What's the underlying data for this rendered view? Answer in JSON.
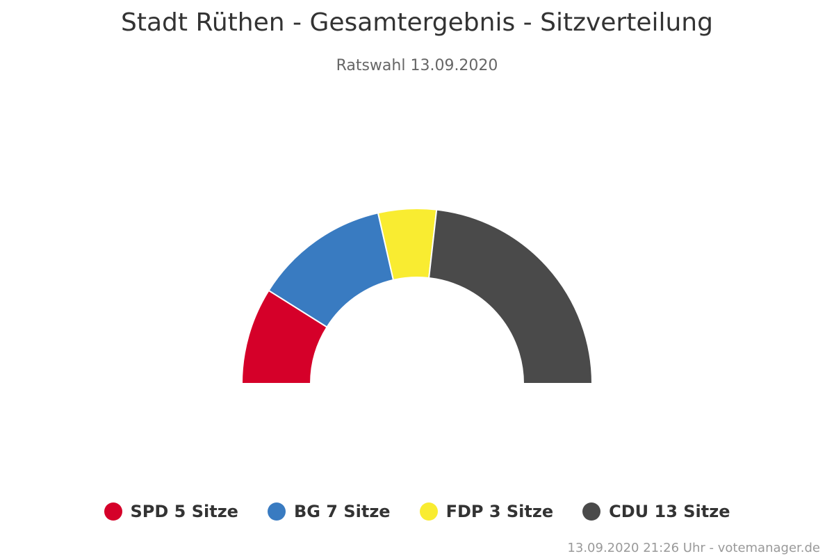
{
  "chart_data": {
    "type": "pie",
    "variant": "semicircle",
    "title": "Stadt Rüthen - Gesamtergebnis - Sitzverteilung",
    "subtitle": "Ratswahl 13.09.2020",
    "unit": "Sitze",
    "legend_position": "bottom-center",
    "series": [
      {
        "name": "SPD",
        "value": 5,
        "color": "#d50029"
      },
      {
        "name": "BG",
        "value": 7,
        "color": "#397bc1"
      },
      {
        "name": "FDP",
        "value": 3,
        "color": "#f9ec31"
      },
      {
        "name": "CDU",
        "value": 13,
        "color": "#4a4a4a"
      }
    ]
  },
  "credits": "13.09.2020 21:26 Uhr - votemanager.de"
}
